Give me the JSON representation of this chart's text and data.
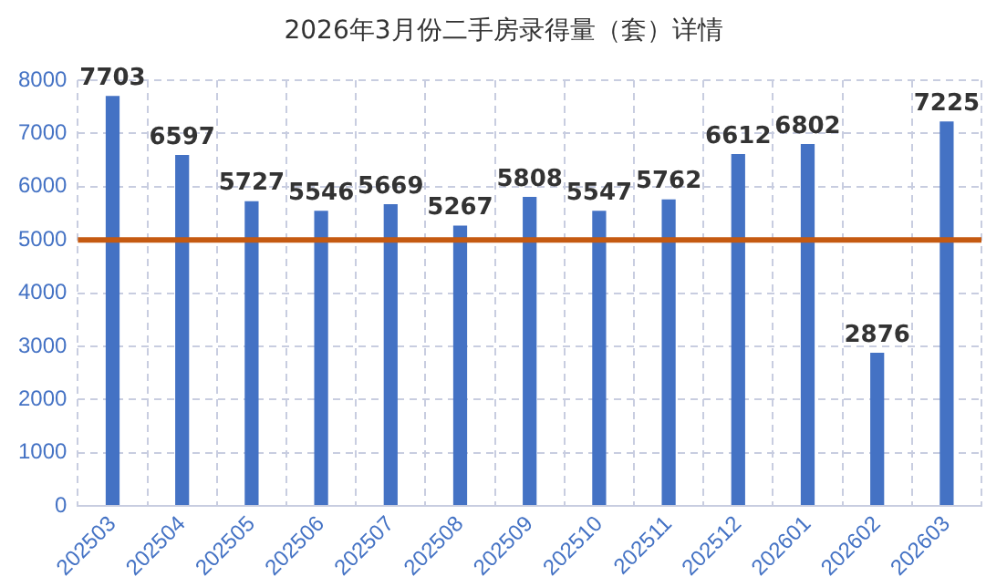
{
  "chart_data": {
    "type": "bar",
    "title": "2026年3月份二手房录得量（套）详情",
    "categories": [
      "202503",
      "202504",
      "202505",
      "202506",
      "202507",
      "202508",
      "202509",
      "202510",
      "202511",
      "202512",
      "202601",
      "202602",
      "202603"
    ],
    "values": [
      7703,
      6597,
      5727,
      5546,
      5669,
      5267,
      5808,
      5547,
      5762,
      6612,
      6802,
      2876,
      7225
    ],
    "color": "#4472c4",
    "ylim": [
      0,
      8000
    ],
    "yticks": [
      0,
      1000,
      2000,
      3000,
      4000,
      5000,
      6000,
      7000,
      8000
    ],
    "grid": true,
    "data_labels": true,
    "legend": false,
    "ref_lines": [
      {
        "axis": "y",
        "value": 5000,
        "color": "#c55a11"
      }
    ]
  }
}
